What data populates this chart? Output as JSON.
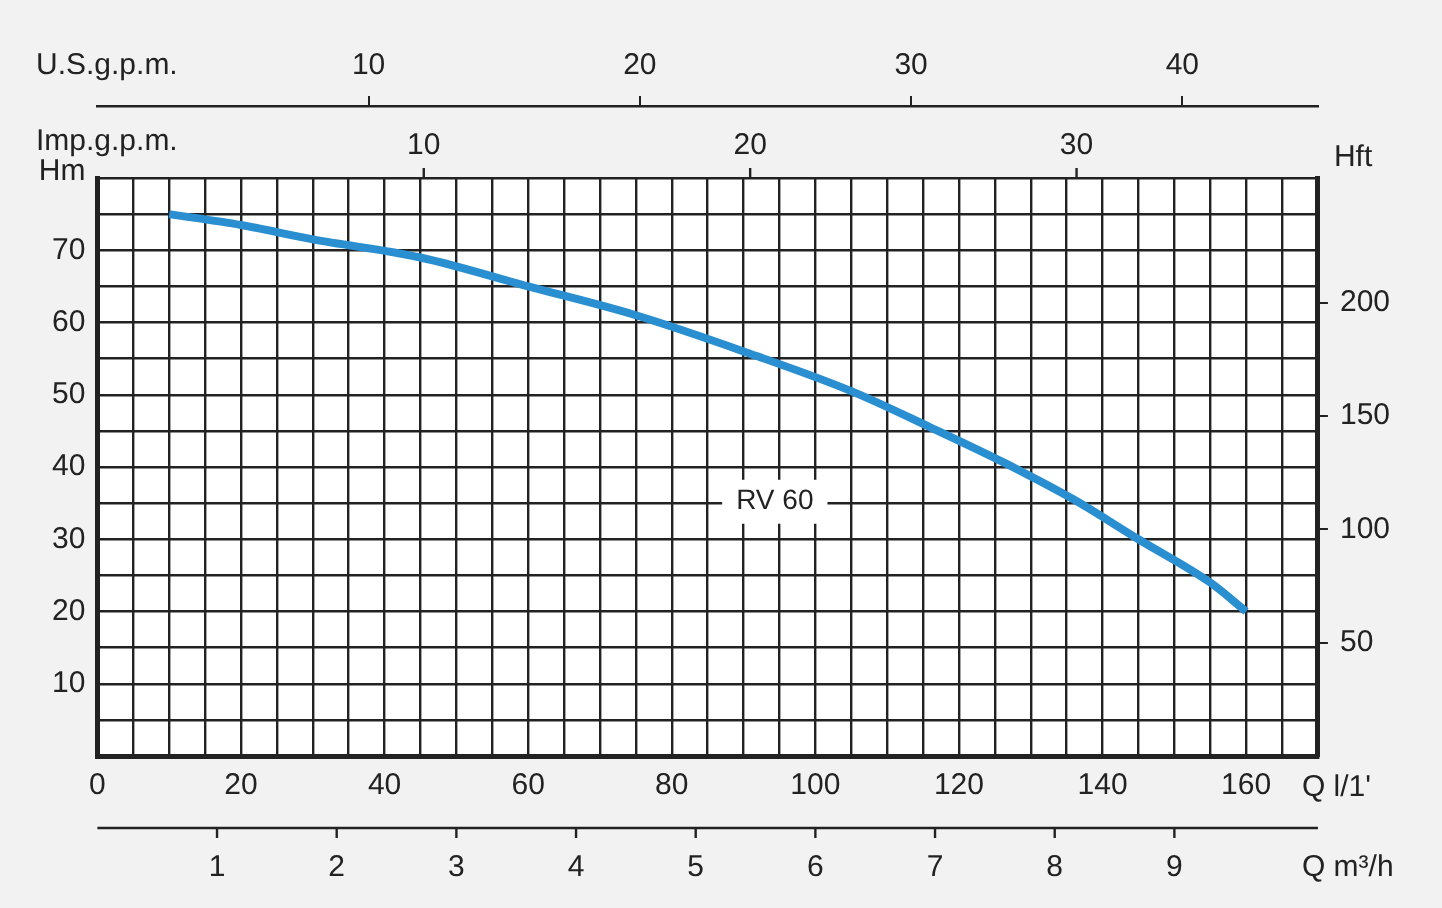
{
  "chart_data": {
    "type": "line",
    "xlabel": "Q l/1'",
    "ylabel": "Hm",
    "y2label": "Hft",
    "x2label": "U.S.g.p.m.",
    "annotations": [
      "Imp.g.p.m.",
      "10",
      "20",
      "30",
      "Q m³/h",
      "1",
      "2",
      "3",
      "4",
      "5",
      "6",
      "7",
      "8",
      "9"
    ],
    "series": [
      {
        "name": "RV 60",
        "color": "#2a8fd0",
        "x": [
          10,
          20,
          30,
          45,
          60,
          75,
          90,
          105,
          116,
          126.5,
          136,
          145,
          155,
          160
        ],
        "values": [
          75,
          73.5,
          71.5,
          69,
          65,
          61,
          56,
          50.5,
          45.5,
          40.5,
          35.5,
          30,
          24,
          20
        ]
      }
    ],
    "xlim": [
      0,
      170
    ],
    "xticks": [
      0,
      {
        "value": 5,
        "label": null
      },
      {
        "value": 10,
        "label": null
      },
      {
        "value": 15,
        "label": null
      },
      20,
      {
        "value": 25,
        "label": null
      },
      {
        "value": 30,
        "label": null
      },
      {
        "value": 35,
        "label": null
      },
      40,
      {
        "value": 45,
        "label": null
      },
      {
        "value": 50,
        "label": null
      },
      {
        "value": 55,
        "label": null
      },
      60,
      {
        "value": 65,
        "label": null
      },
      {
        "value": 70,
        "label": null
      },
      {
        "value": 75,
        "label": null
      },
      80,
      {
        "value": 85,
        "label": null
      },
      {
        "value": 90,
        "label": null
      },
      {
        "value": 95,
        "label": null
      },
      100,
      {
        "value": 105,
        "label": null
      },
      {
        "value": 110,
        "label": null
      },
      {
        "value": 115,
        "label": null
      },
      120,
      {
        "value": 125,
        "label": null
      },
      {
        "value": 130,
        "label": null
      },
      {
        "value": 135,
        "label": null
      },
      140,
      {
        "value": 145,
        "label": null
      },
      {
        "value": 150,
        "label": null
      },
      {
        "value": 155,
        "label": null
      },
      160,
      {
        "value": 165,
        "label": null
      },
      {
        "value": 170,
        "label": null
      }
    ],
    "ylim": [
      0,
      80
    ],
    "yticks": [
      {
        "value": 0,
        "label": null
      },
      {
        "value": 5,
        "label": null
      },
      10,
      {
        "value": 15,
        "label": null
      },
      20,
      {
        "value": 25,
        "label": null
      },
      30,
      {
        "value": 35,
        "label": null
      },
      40,
      {
        "value": 45,
        "label": null
      },
      50,
      {
        "value": 55,
        "label": null
      },
      60,
      {
        "value": 65,
        "label": null
      },
      70,
      {
        "value": 75,
        "label": null
      },
      {
        "value": 80,
        "label": null
      }
    ],
    "y2lim": [
      0,
      255
    ],
    "y2ticks": [
      50,
      100,
      150,
      200
    ],
    "x2lim": [
      0,
      45
    ],
    "x2ticks": [
      10,
      20,
      30,
      40
    ],
    "grid": true,
    "marker": "none",
    "legend": false
  }
}
